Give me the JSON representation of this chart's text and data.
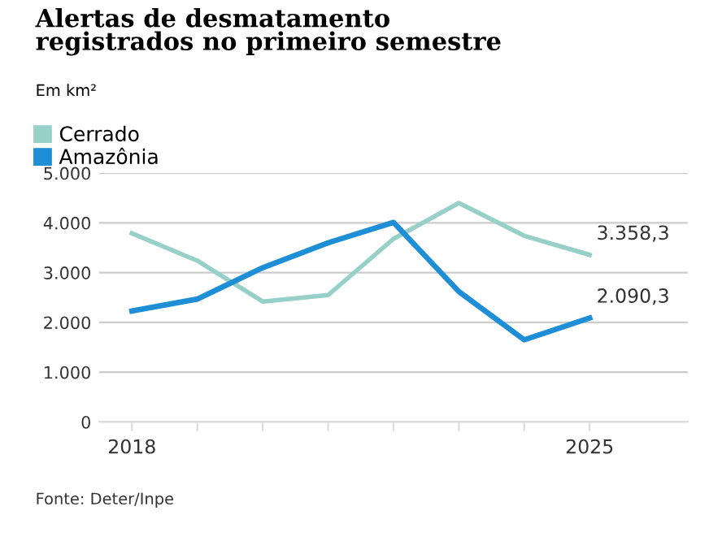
{
  "chart_data": {
    "type": "line",
    "title": "Alertas de desmatamento\nregistrados no primeiro semestre",
    "subtitle": "Em km²",
    "x": [
      2018,
      2019,
      2020,
      2021,
      2022,
      2023,
      2024,
      2025
    ],
    "series": [
      {
        "name": "Cerrado",
        "color": "#96d0c8",
        "values": [
          3790,
          3240,
          2420,
          2550,
          3680,
          4400,
          3740,
          3358.3
        ],
        "value_labels": [
          null,
          null,
          null,
          null,
          null,
          null,
          null,
          "3.358,3"
        ]
      },
      {
        "name": "Amazônia",
        "color": "#1e8fd6",
        "values": [
          2230,
          2470,
          3100,
          3600,
          4010,
          2620,
          1650,
          2090.3
        ],
        "value_labels": [
          null,
          null,
          null,
          null,
          null,
          null,
          null,
          "2.090,3"
        ]
      }
    ],
    "xlim": [
      2017.5,
      2026.5
    ],
    "ylim": [
      0,
      5000
    ],
    "xticks": [
      2018,
      {
        "value": 2019,
        "label": null
      },
      {
        "value": 2020,
        "label": null
      },
      {
        "value": 2021,
        "label": null
      },
      {
        "value": 2022,
        "label": null
      },
      {
        "value": 2023,
        "label": null
      },
      {
        "value": 2024,
        "label": null
      },
      2025
    ],
    "yticks": [
      {
        "value": 0,
        "label": "0"
      },
      {
        "value": 1000,
        "label": "1.000"
      },
      {
        "value": 2000,
        "label": "2.000"
      },
      {
        "value": 3000,
        "label": "3.000"
      },
      {
        "value": 4000,
        "label": "4.000"
      },
      {
        "value": 5000,
        "label": "5.000"
      }
    ],
    "grid": "y",
    "legend": "top left",
    "marker": "none",
    "line_style": "solid",
    "annotations": [
      "Fonte: Deter/Inpe"
    ]
  }
}
